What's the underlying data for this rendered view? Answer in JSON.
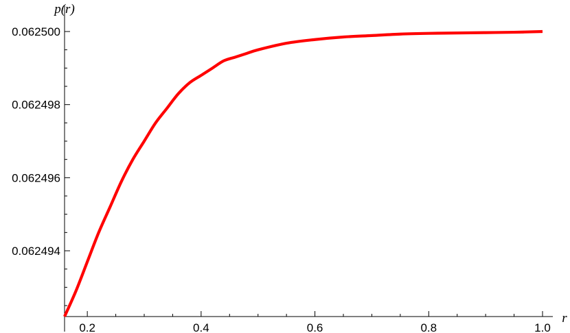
{
  "chart_data": {
    "type": "line",
    "xlabel": "r",
    "ylabel": "p(r)",
    "xlim": [
      0.16,
      1.0
    ],
    "ylim": [
      0.0624922,
      0.0625003
    ],
    "x_ticks": [
      {
        "value": 0.2,
        "label": "0.2"
      },
      {
        "value": 0.4,
        "label": "0.4"
      },
      {
        "value": 0.6,
        "label": "0.6"
      },
      {
        "value": 0.8,
        "label": "0.8"
      },
      {
        "value": 1.0,
        "label": "1.0"
      }
    ],
    "y_ticks": [
      {
        "value": 0.062494,
        "label": "0.062494"
      },
      {
        "value": 0.062496,
        "label": "0.062496"
      },
      {
        "value": 0.062498,
        "label": "0.062498"
      },
      {
        "value": 0.0625,
        "label": "0.062500"
      }
    ],
    "series": [
      {
        "color": "#ff0000",
        "x": [
          0.16,
          0.18,
          0.2,
          0.22,
          0.24,
          0.26,
          0.28,
          0.3,
          0.32,
          0.34,
          0.36,
          0.38,
          0.4,
          0.42,
          0.44,
          0.46,
          0.48,
          0.5,
          0.55,
          0.6,
          0.65,
          0.7,
          0.75,
          0.8,
          0.85,
          0.9,
          0.95,
          1.0
        ],
        "y": [
          0.0624922,
          0.0624929,
          0.0624937,
          0.0624945,
          0.0624952,
          0.0624959,
          0.0624965,
          0.062497,
          0.0624975,
          0.0624979,
          0.0624983,
          0.0624986,
          0.0624988,
          0.062499,
          0.0624992,
          0.0624993,
          0.0624994,
          0.0624995,
          0.06249968,
          0.06249978,
          0.06249985,
          0.06249989,
          0.06249993,
          0.06249995,
          0.06249996,
          0.06249997,
          0.06249998,
          0.0625
        ]
      }
    ]
  }
}
